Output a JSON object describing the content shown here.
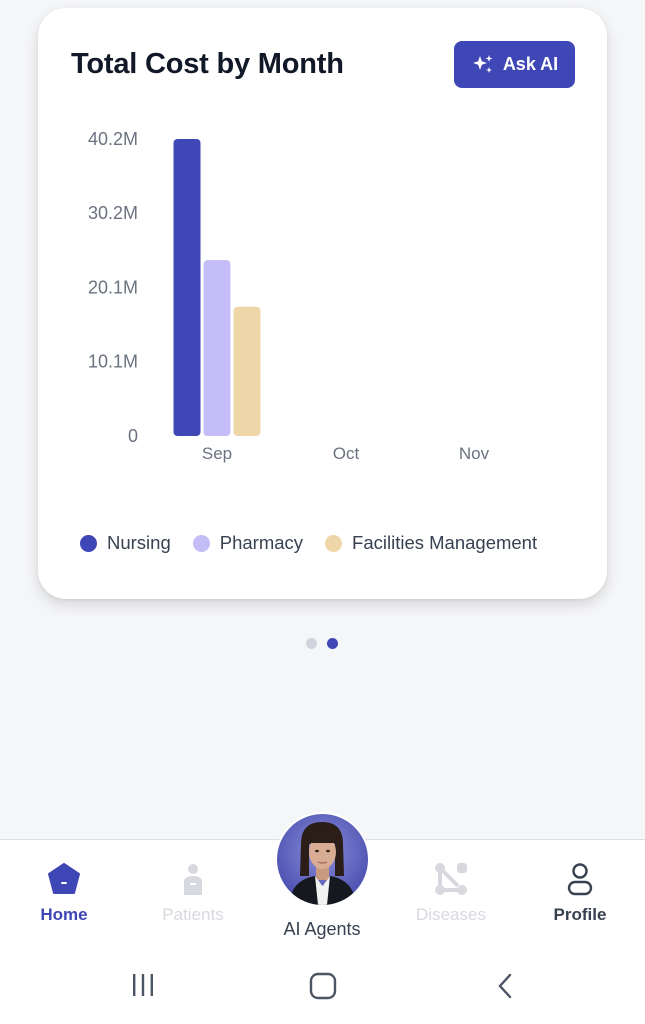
{
  "card": {
    "title": "Total Cost by Month",
    "ask_ai_label": "Ask AI"
  },
  "chart_data": {
    "type": "bar",
    "title": "Total Cost by Month",
    "categories": [
      "Sep",
      "Oct",
      "Nov"
    ],
    "series": [
      {
        "name": "Nursing",
        "color": "#3f46b5",
        "values": [
          40.2,
          0,
          0
        ]
      },
      {
        "name": "Pharmacy",
        "color": "#c4bdf7",
        "values": [
          23.8,
          0,
          0
        ]
      },
      {
        "name": "Facilities Management",
        "color": "#efd6a8",
        "values": [
          17.5,
          0,
          0
        ]
      }
    ],
    "y_ticks": [
      "0",
      "10.1M",
      "20.1M",
      "30.2M",
      "40.2M"
    ],
    "ylim": [
      0,
      40.2
    ],
    "unit": "M",
    "grid": false,
    "legend_position": "bottom"
  },
  "pager": {
    "count": 2,
    "active": 1
  },
  "nav": {
    "home": "Home",
    "patients": "Patients",
    "ai_agents": "AI Agents",
    "diseases": "Diseases",
    "profile": "Profile"
  },
  "colors": {
    "accent": "#3f46b5",
    "inactive": "#d7d9df",
    "text_dark": "#374151"
  }
}
